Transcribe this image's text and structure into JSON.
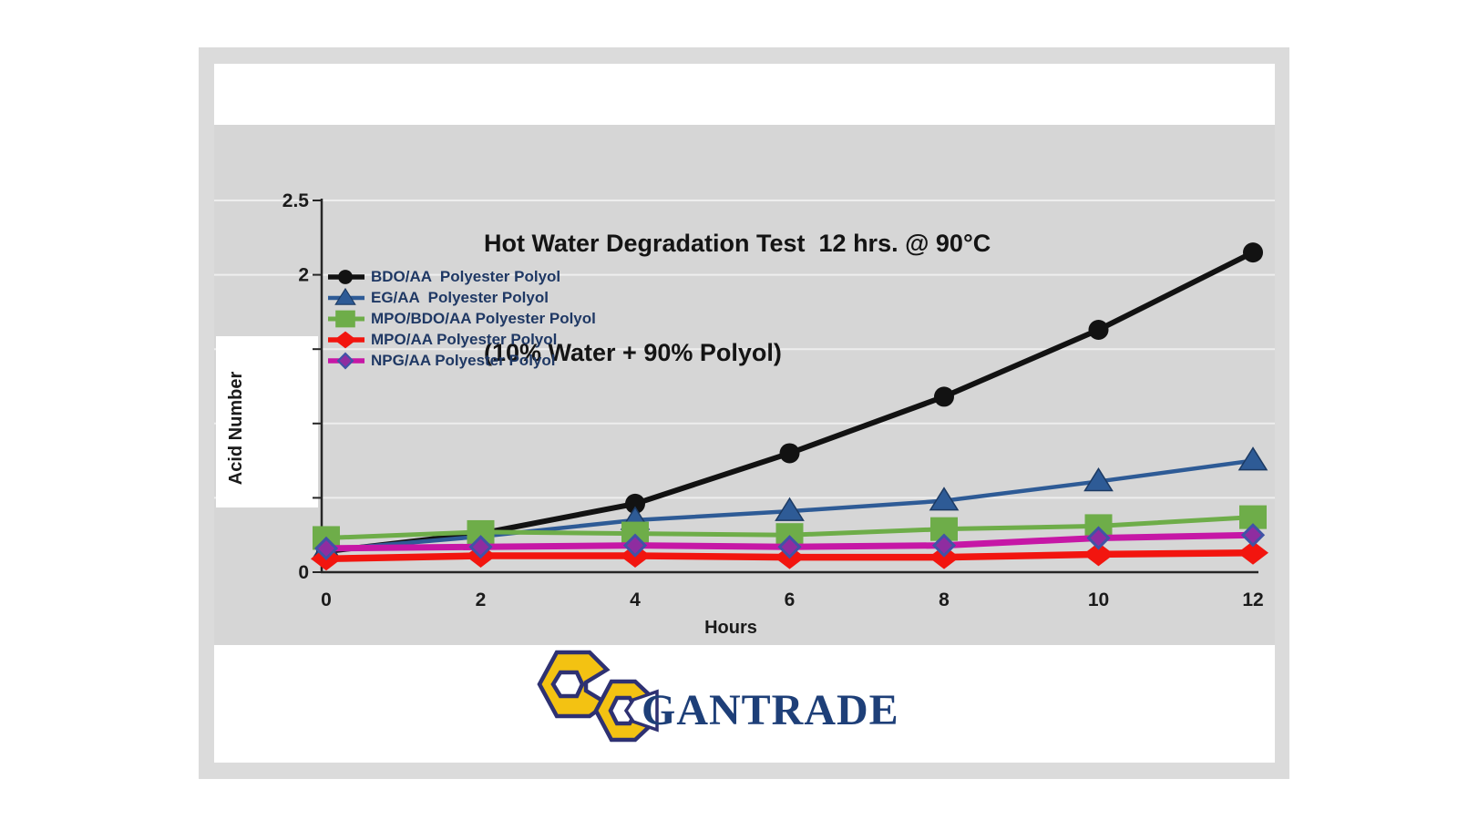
{
  "theme": {
    "frame_bg": "#dbdbdb",
    "panel_bg": "#d6d6d6",
    "gridline": "#eeeeee",
    "axis_color": "#262626",
    "tick_text": "#1b1b1b",
    "title_color": "#141414",
    "legend_text": "#1f3864"
  },
  "chart_data": {
    "type": "line",
    "title": "Hot Water Degradation Test  12 hrs. @ 90°C (10% Water + 90% Polyol)",
    "title_line1": "Hot Water Degradation Test  12 hrs. @ 90°C",
    "title_line2": "(10% Water + 90% Polyol)",
    "xlabel": "Hours",
    "ylabel": "Acid Number",
    "x": [
      0,
      2,
      4,
      6,
      8,
      10,
      12
    ],
    "xtick_labels": [
      "0",
      "2",
      "4",
      "6",
      "8",
      "10",
      "12"
    ],
    "ylim": [
      0,
      2.5
    ],
    "yticks": [
      0,
      0.5,
      1,
      1.5,
      2,
      2.5
    ],
    "ytick_labels_shown": [
      "0",
      "2",
      "2.5"
    ],
    "grid": true,
    "legend_position": "upper-left-inside",
    "series": [
      {
        "name": "BDO/AA  Polyester Polyol",
        "color": "#121212",
        "marker": "circle",
        "line_width": 6,
        "values": [
          0.14,
          0.26,
          0.46,
          0.8,
          1.18,
          1.63,
          2.15
        ]
      },
      {
        "name": "EG/AA  Polyester Polyol",
        "color": "#2e5b96",
        "marker": "triangle",
        "marker_edge": "#1c3a63",
        "line_width": 4.5,
        "values": [
          0.15,
          0.24,
          0.35,
          0.41,
          0.48,
          0.61,
          0.75
        ]
      },
      {
        "name": "MPO/BDO/AA Polyester Polyol",
        "color": "#6ead49",
        "marker": "square",
        "line_width": 5,
        "values": [
          0.23,
          0.27,
          0.26,
          0.25,
          0.29,
          0.31,
          0.37
        ]
      },
      {
        "name": "MPO/AA Polyester Polyol",
        "color": "#f2150f",
        "marker": "diamond",
        "line_width": 7.5,
        "values": [
          0.09,
          0.11,
          0.11,
          0.1,
          0.1,
          0.12,
          0.13
        ]
      },
      {
        "name": "NPG/AA Polyester Polyol",
        "color": "#c617a6",
        "marker": "diamond-small",
        "marker_color": "#8f2da0",
        "marker_edge": "#4053a6",
        "line_width": 7,
        "values": [
          0.16,
          0.17,
          0.18,
          0.17,
          0.18,
          0.23,
          0.25
        ]
      }
    ]
  },
  "logo": {
    "text": "GANTRADE",
    "yellow": "#f3c212",
    "outline": "#2e3172",
    "text_color": "#1e3f78"
  }
}
